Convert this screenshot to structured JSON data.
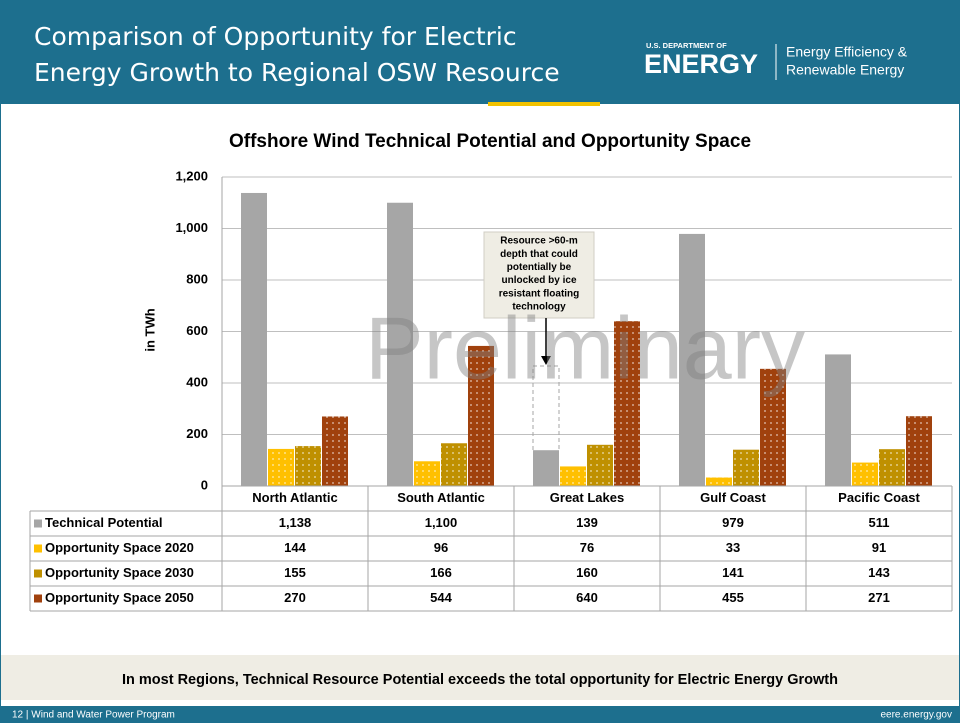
{
  "header": {
    "title_lines": [
      "Comparison of Opportunity for Electric",
      "Energy Growth to Regional OSW Resource"
    ],
    "logo_small": "U.S. DEPARTMENT OF",
    "logo_big": "ENERGY",
    "logo_lines": [
      "Energy Efficiency &",
      "Renewable Energy"
    ]
  },
  "chart_data": {
    "type": "bar",
    "title": "Offshore Wind Technical Potential and Opportunity Space",
    "y_label": "in TWh",
    "watermark": "Preliminary",
    "annotation_lines": [
      "Resource >60-m",
      "depth that could",
      "potentially be",
      "unlocked by ice",
      "resistant floating",
      "technology"
    ],
    "categories": [
      "North Atlantic",
      "South Atlantic",
      "Great Lakes",
      "Gulf Coast",
      "Pacific Coast"
    ],
    "ylim": [
      0,
      1200
    ],
    "yticks": [
      0,
      200,
      400,
      600,
      800,
      {
        "value": 1000,
        "label": "1,000"
      },
      {
        "value": 1200,
        "label": "1,200"
      }
    ],
    "grid": true,
    "series": [
      {
        "name": "Technical Potential",
        "color": "#a6a6a6",
        "values": [
          1138,
          1100,
          139,
          979,
          511
        ],
        "value_labels": [
          "1,138",
          "1,100",
          "139",
          "979",
          "511"
        ]
      },
      {
        "name": "Opportunity Space 2020",
        "color": "#ffc000",
        "values": [
          144,
          96,
          76,
          33,
          91
        ]
      },
      {
        "name": "Opportunity Space 2030",
        "color": "#bf9000",
        "values": [
          155,
          166,
          160,
          141,
          143
        ]
      },
      {
        "name": "Opportunity Space 2050",
        "color": "#a0410d",
        "values": [
          270,
          544,
          640,
          455,
          271
        ]
      }
    ]
  },
  "footer": {
    "message": "In most Regions, Technical Resource Potential exceeds the total opportunity for Electric Energy Growth",
    "left": "12 | Wind and Water Power Program",
    "right": "eere.energy.gov"
  }
}
